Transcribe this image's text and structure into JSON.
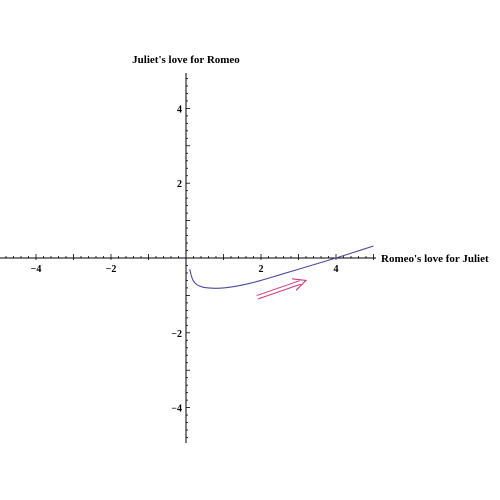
{
  "chart_data": {
    "type": "line",
    "title": "",
    "xlabel": "Romeo's love for Juliet",
    "ylabel": "Juliet's love for Romeo",
    "xlim": [
      -5,
      5
    ],
    "ylim": [
      -5,
      5
    ],
    "xticks": [
      {
        "value": -4,
        "label": "−4"
      },
      {
        "value": -2,
        "label": "−2"
      },
      {
        "value": 2,
        "label": "2"
      },
      {
        "value": 4,
        "label": "4"
      }
    ],
    "yticks": [
      {
        "value": 4,
        "label": "4"
      },
      {
        "value": 2,
        "label": "2"
      },
      {
        "value": -2,
        "label": "−2"
      },
      {
        "value": -4,
        "label": "−4"
      }
    ],
    "grid": false,
    "legend": "none",
    "series": [
      {
        "color": "#4b4b9b",
        "x": [
          0.1,
          0.15,
          0.2,
          0.3,
          0.45,
          0.6,
          0.8,
          1.0,
          1.3,
          1.6,
          2.0,
          2.5,
          3.0,
          3.5,
          4.0,
          4.5,
          5.0
        ],
        "y": [
          -0.3,
          -0.5,
          -0.62,
          -0.72,
          -0.78,
          -0.8,
          -0.81,
          -0.8,
          -0.76,
          -0.7,
          -0.6,
          -0.45,
          -0.3,
          -0.15,
          0.0,
          0.16,
          0.32
        ]
      }
    ],
    "annotations": [
      {
        "type": "arrow",
        "color": "#d03a7a",
        "from": [
          1.9,
          -1.05
        ],
        "to": [
          3.2,
          -0.6
        ]
      }
    ]
  }
}
